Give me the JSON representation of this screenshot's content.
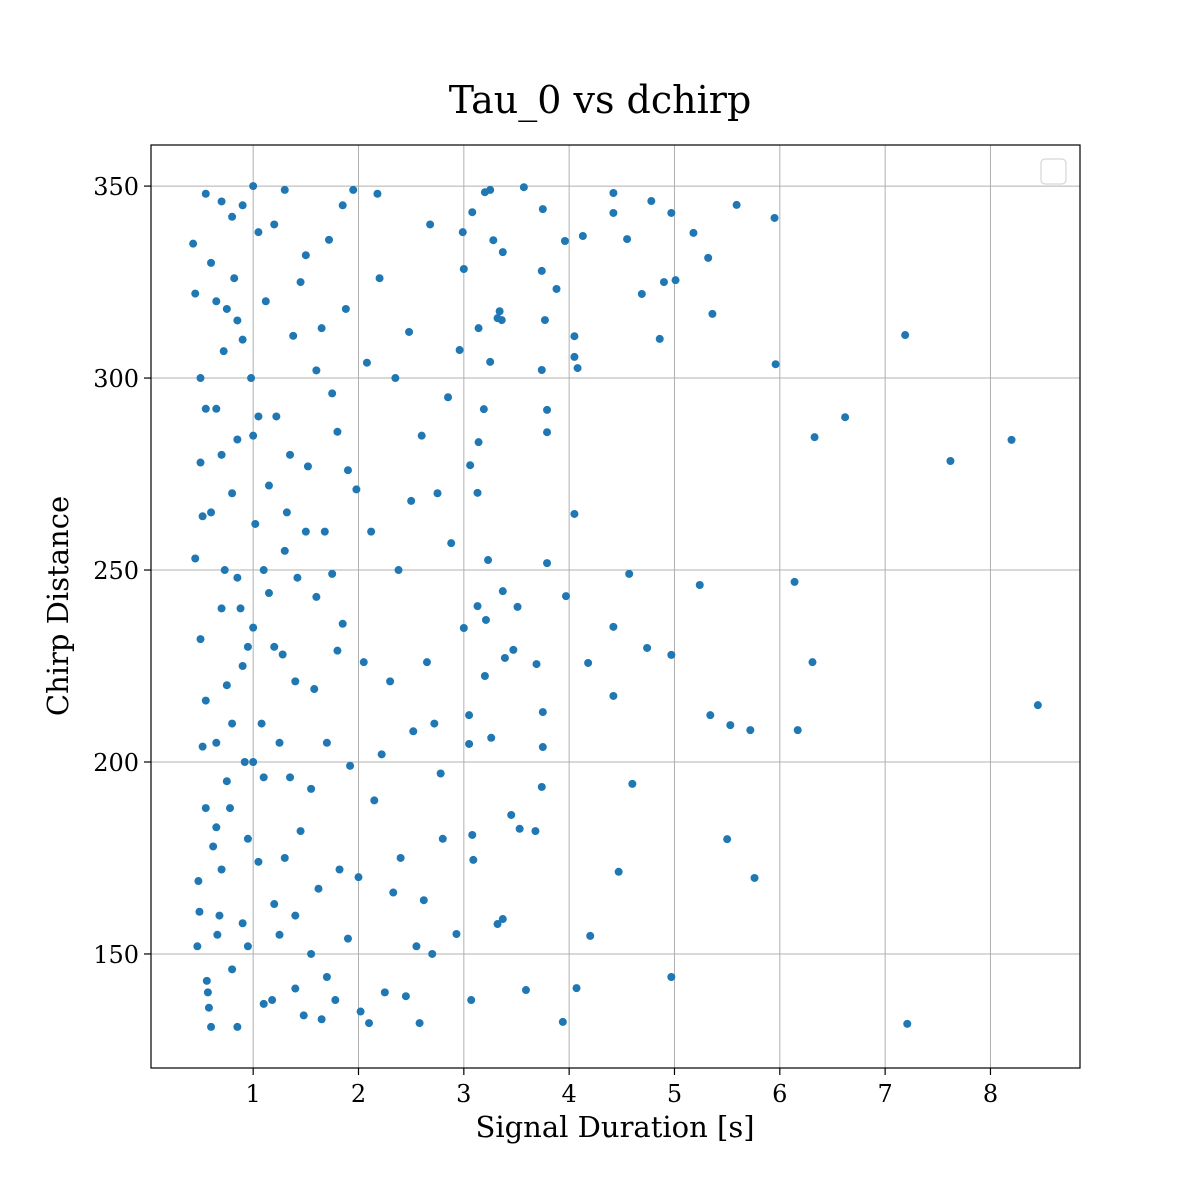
{
  "chart_data": {
    "type": "scatter",
    "title": "Tau_0 vs dchirp",
    "xlabel": "Signal Duration [s]",
    "ylabel": "Chirp Distance",
    "color": "#1f77b4",
    "grid": true,
    "xlim": [
      0.03,
      8.85
    ],
    "ylim": [
      120.3,
      360.7
    ],
    "xticks": [
      1,
      2,
      3,
      4,
      5,
      6,
      7,
      8
    ],
    "yticks": [
      150,
      200,
      250,
      300,
      350
    ],
    "x": [
      8.45,
      8.2,
      7.62,
      7.21,
      7.19,
      6.62,
      6.33,
      6.31,
      6.17,
      6.14,
      5.96,
      5.95,
      5.76,
      5.72,
      5.59,
      5.53,
      5.5,
      5.36,
      5.34,
      5.32,
      5.24,
      5.18,
      4.97,
      5.01,
      4.97,
      4.97,
      4.9,
      4.86,
      4.78,
      4.74,
      4.69,
      4.6,
      4.57,
      4.55,
      4.47,
      4.42,
      4.42,
      4.42,
      4.42,
      4.2,
      4.18,
      4.13,
      4.07,
      4.08,
      4.05,
      4.05,
      4.05,
      3.96,
      3.97,
      3.94,
      3.88,
      3.79,
      3.79,
      3.79,
      3.77,
      3.75,
      3.74,
      3.74,
      3.75,
      3.75,
      3.74,
      3.69,
      3.68,
      3.59,
      3.57,
      3.53,
      3.51,
      3.47,
      3.45,
      3.39,
      3.37,
      3.37,
      3.36,
      3.32,
      3.34,
      3.37,
      3.32,
      3.25,
      3.28,
      3.25,
      3.26,
      3.23,
      3.2,
      3.19,
      3.21,
      3.2,
      3.14,
      3.14,
      3.13,
      3.13,
      3.08,
      3.09,
      3.08,
      3.07,
      3.06,
      3.05,
      3.05,
      3.0,
      3.0,
      2.99,
      2.96,
      2.93,
      0.45,
      0.43,
      0.45,
      0.47,
      0.48,
      0.49,
      0.5,
      0.5,
      0.52,
      0.52,
      0.55,
      0.55,
      0.56,
      0.57,
      0.58,
      0.6,
      0.62,
      0.65,
      0.66,
      0.68,
      0.7,
      0.72,
      0.73,
      0.75,
      0.78,
      0.8,
      0.82,
      0.85,
      0.85,
      0.88,
      0.9,
      0.92,
      0.95,
      0.98,
      1.0,
      1.02,
      1.05,
      1.08,
      1.1,
      1.12,
      1.15,
      1.18,
      1.2,
      1.22,
      1.25,
      1.28,
      1.3,
      1.32,
      1.35,
      1.38,
      1.4,
      1.42,
      1.45,
      1.48,
      1.5,
      1.52,
      1.55,
      1.58,
      1.6,
      1.62,
      1.65,
      1.68,
      1.7,
      1.72,
      1.75,
      1.78,
      1.8,
      1.82,
      1.85,
      1.88,
      1.9,
      1.92,
      1.95,
      1.98,
      2.0,
      2.02,
      2.05,
      2.08,
      2.1,
      2.12,
      2.15,
      2.18,
      2.2,
      2.22,
      2.25,
      2.3,
      2.33,
      2.35,
      2.38,
      2.4,
      2.45,
      2.48,
      2.5,
      2.52,
      2.55,
      2.58,
      2.6,
      2.62,
      2.65,
      2.68,
      2.7,
      2.72,
      2.75,
      2.78,
      2.8,
      2.85,
      2.88,
      0.6,
      0.65,
      0.7,
      0.75,
      0.8,
      0.85,
      0.9,
      0.95,
      1.0,
      1.05,
      1.1,
      1.15,
      1.2,
      1.25,
      1.3,
      1.35,
      1.4,
      1.45,
      1.5,
      1.55,
      1.6,
      1.65,
      1.7,
      1.75,
      1.8,
      1.85,
      1.9,
      0.5,
      0.55,
      0.6,
      0.65,
      0.7,
      0.75,
      0.8,
      0.85,
      0.9,
      0.95,
      1.0,
      1.0,
      1.05,
      0.7,
      0.8,
      0.9,
      1.1,
      1.2,
      1.3,
      1.4,
      0.55,
      0.65
    ],
    "values": [
      214.8,
      283.9,
      278.4,
      131.8,
      311.2,
      289.8,
      284.6,
      226.0,
      208.3,
      246.9,
      303.6,
      341.7,
      169.8,
      208.3,
      345.1,
      209.6,
      179.9,
      316.7,
      212.2,
      331.3,
      246.1,
      337.8,
      343.0,
      325.5,
      227.9,
      144.0,
      325.0,
      310.2,
      346.1,
      229.7,
      321.9,
      194.3,
      249.0,
      336.2,
      171.4,
      343.0,
      235.2,
      217.2,
      348.2,
      154.7,
      225.8,
      337.0,
      141.1,
      302.6,
      305.5,
      310.9,
      264.6,
      335.7,
      243.2,
      132.3,
      323.2,
      251.8,
      285.9,
      291.7,
      315.1,
      344.0,
      327.9,
      302.1,
      213.0,
      203.9,
      193.5,
      225.5,
      182.0,
      140.6,
      349.7,
      182.6,
      240.4,
      229.2,
      186.2,
      227.1,
      244.5,
      332.8,
      315.1,
      315.6,
      317.4,
      159.1,
      157.8,
      349.0,
      335.9,
      304.2,
      206.3,
      252.6,
      348.4,
      291.9,
      237.0,
      222.4,
      313.0,
      283.3,
      270.1,
      240.6,
      343.2,
      174.5,
      181.0,
      138.0,
      277.3,
      204.7,
      212.2,
      234.9,
      328.4,
      338.0,
      307.3,
      155.2,
      253,
      335,
      322,
      152,
      169,
      161,
      300,
      278,
      204,
      264,
      348,
      216,
      143,
      140,
      136,
      131,
      178,
      183,
      155,
      160,
      346,
      307,
      250,
      220,
      188,
      146,
      326,
      131,
      284,
      240,
      345,
      200,
      152,
      300,
      350,
      262,
      174,
      210,
      137,
      320,
      244,
      138,
      163,
      290,
      155,
      228,
      349,
      265,
      196,
      311,
      141,
      248,
      182,
      134,
      332,
      277,
      150,
      219,
      302,
      167,
      133,
      260,
      205,
      336,
      249,
      138,
      286,
      172,
      236,
      318,
      154,
      199,
      349,
      271,
      170,
      135,
      226,
      304,
      132,
      260,
      190,
      348,
      326,
      202,
      140,
      221,
      166,
      300,
      250,
      175,
      139,
      312,
      268,
      208,
      152,
      132,
      285,
      164,
      226,
      340,
      150,
      210,
      270,
      197,
      180,
      295,
      257,
      330,
      292,
      240,
      195,
      270,
      315,
      225,
      180,
      285,
      338,
      196,
      272,
      340,
      205,
      175,
      280,
      221,
      325,
      260,
      193,
      243,
      313,
      144,
      296,
      229,
      345,
      276,
      232,
      292,
      265,
      205,
      172,
      318,
      342,
      248,
      158,
      230,
      235,
      200,
      290,
      280,
      210,
      310,
      250,
      230,
      255,
      160,
      188,
      320
    ]
  }
}
